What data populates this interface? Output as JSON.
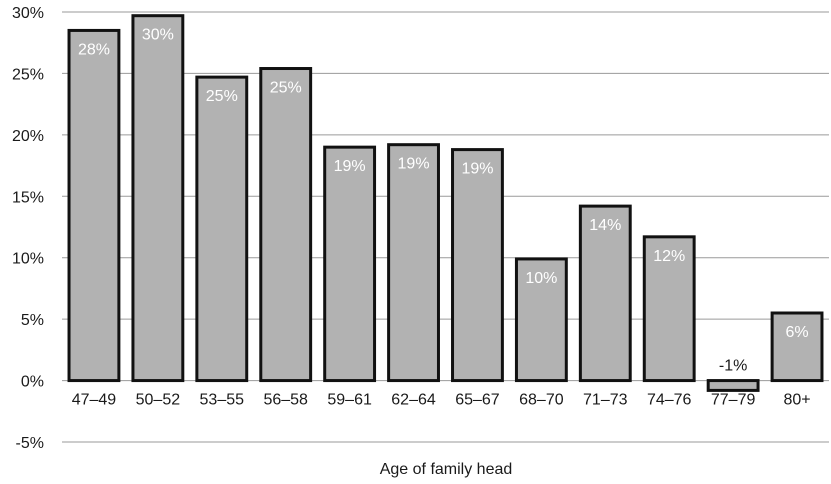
{
  "chart_data": {
    "type": "bar",
    "title": "",
    "xlabel": "Age of family head",
    "ylabel": "",
    "categories": [
      "47–49",
      "50–52",
      "53–55",
      "56–58",
      "59–61",
      "62–64",
      "65–67",
      "68–70",
      "71–73",
      "74–76",
      "77–79",
      "80+"
    ],
    "values": [
      28.5,
      29.7,
      24.7,
      25.4,
      19.0,
      19.2,
      18.8,
      9.9,
      14.2,
      11.7,
      -0.8,
      5.5
    ],
    "data_labels": [
      "28%",
      "30%",
      "25%",
      "25%",
      "19%",
      "19%",
      "19%",
      "10%",
      "14%",
      "12%",
      "-1%",
      "6%"
    ],
    "ylim": [
      -5,
      30
    ],
    "yticks": [
      -5,
      0,
      5,
      10,
      15,
      20,
      25,
      30
    ],
    "ytick_labels": [
      "-5%",
      "0%",
      "5%",
      "10%",
      "15%",
      "20%",
      "25%",
      "30%"
    ],
    "grid": true,
    "legend": "none"
  },
  "colors": {
    "bar_fill": "#b2b2b2",
    "bar_stroke": "#111111",
    "grid": "#9a9a9a",
    "label_inside": "#ffffff",
    "label_outside": "#1a1a1a"
  }
}
